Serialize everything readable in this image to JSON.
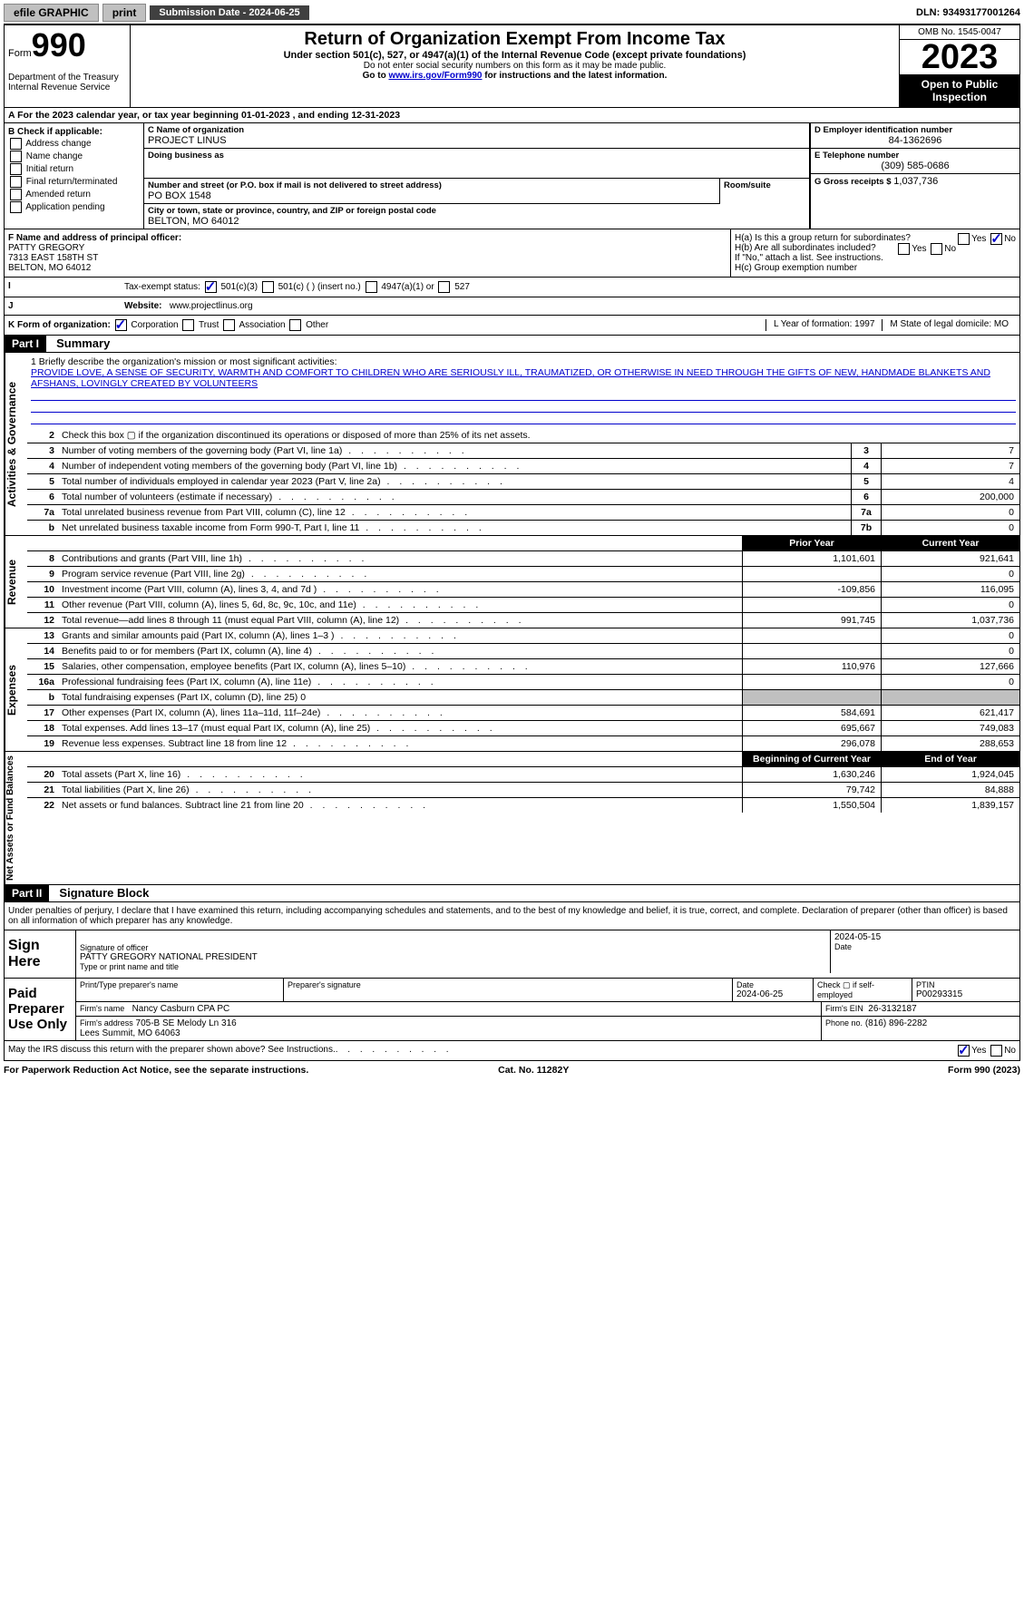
{
  "topbar": {
    "efile": "efile GRAPHIC",
    "print": "print",
    "submission": "Submission Date - 2024-06-25",
    "dln": "DLN: 93493177001264"
  },
  "header": {
    "form_label": "Form",
    "form_num": "990",
    "title": "Return of Organization Exempt From Income Tax",
    "subtitle": "Under section 501(c), 527, or 4947(a)(1) of the Internal Revenue Code (except private foundations)",
    "warn": "Do not enter social security numbers on this form as it may be made public.",
    "goto_pre": "Go to ",
    "goto_link": "www.irs.gov/Form990",
    "goto_post": " for instructions and the latest information.",
    "dept": "Department of the Treasury\nInternal Revenue Service",
    "omb": "OMB No. 1545-0047",
    "year": "2023",
    "inspection": "Open to Public Inspection"
  },
  "row_a": "A For the 2023 calendar year, or tax year beginning 01-01-2023    , and ending 12-31-2023",
  "box_b": {
    "title": "B Check if applicable:",
    "items": [
      "Address change",
      "Name change",
      "Initial return",
      "Final return/terminated",
      "Amended return",
      "Application pending"
    ]
  },
  "box_c": {
    "lbl": "C Name of organization",
    "val": "PROJECT LINUS",
    "dba_lbl": "Doing business as"
  },
  "box_addr": {
    "street_lbl": "Number and street (or P.O. box if mail is not delivered to street address)",
    "street": "PO BOX 1548",
    "room_lbl": "Room/suite",
    "city_lbl": "City or town, state or province, country, and ZIP or foreign postal code",
    "city": "BELTON, MO  64012"
  },
  "box_d": {
    "lbl": "D Employer identification number",
    "val": "84-1362696"
  },
  "box_e": {
    "lbl": "E Telephone number",
    "val": "(309) 585-0686"
  },
  "box_g": {
    "lbl": "G Gross receipts $",
    "val": "1,037,736"
  },
  "box_f": {
    "lbl": "F  Name and address of principal officer:",
    "name": "PATTY GREGORY",
    "addr1": "7313 EAST 158TH ST",
    "addr2": "BELTON, MO  64012"
  },
  "box_h": {
    "a": "H(a)  Is this a group return for subordinates?",
    "b": "H(b)  Are all subordinates included?",
    "b_note": "If \"No,\" attach a list. See instructions.",
    "c": "H(c)  Group exemption number",
    "yes": "Yes",
    "no": "No"
  },
  "row_i": {
    "lbl": "Tax-exempt status:",
    "opts": [
      "501(c)(3)",
      "501(c) (  ) (insert no.)",
      "4947(a)(1) or",
      "527"
    ]
  },
  "row_j": {
    "lbl": "Website:",
    "val": "www.projectlinus.org"
  },
  "row_k": {
    "lbl": "K Form of organization:",
    "opts": [
      "Corporation",
      "Trust",
      "Association",
      "Other"
    ],
    "l": "L Year of formation: 1997",
    "m": "M State of legal domicile: MO"
  },
  "part1": {
    "hdr": "Part I",
    "title": "Summary"
  },
  "mission": {
    "line1_lbl": "1  Briefly describe the organization's mission or most significant activities:",
    "text": "PROVIDE LOVE, A SENSE OF SECURITY, WARMTH AND COMFORT TO CHILDREN WHO ARE SERIOUSLY ILL, TRAUMATIZED, OR OTHERWISE IN NEED THROUGH THE GIFTS OF NEW, HANDMADE BLANKETS AND AFSHANS, LOVINGLY CREATED BY VOLUNTEERS"
  },
  "gov_lines": [
    {
      "n": "2",
      "d": "Check this box ▢ if the organization discontinued its operations or disposed of more than 25% of its net assets."
    },
    {
      "n": "3",
      "d": "Number of voting members of the governing body (Part VI, line 1a)",
      "box": "3",
      "v": "7"
    },
    {
      "n": "4",
      "d": "Number of independent voting members of the governing body (Part VI, line 1b)",
      "box": "4",
      "v": "7"
    },
    {
      "n": "5",
      "d": "Total number of individuals employed in calendar year 2023 (Part V, line 2a)",
      "box": "5",
      "v": "4"
    },
    {
      "n": "6",
      "d": "Total number of volunteers (estimate if necessary)",
      "box": "6",
      "v": "200,000"
    },
    {
      "n": "7a",
      "d": "Total unrelated business revenue from Part VIII, column (C), line 12",
      "box": "7a",
      "v": "0"
    },
    {
      "n": "b",
      "d": "Net unrelated business taxable income from Form 990-T, Part I, line 11",
      "box": "7b",
      "v": "0"
    }
  ],
  "year_hdr": {
    "prior": "Prior Year",
    "current": "Current Year"
  },
  "rev_lines": [
    {
      "n": "8",
      "d": "Contributions and grants (Part VIII, line 1h)",
      "p": "1,101,601",
      "c": "921,641"
    },
    {
      "n": "9",
      "d": "Program service revenue (Part VIII, line 2g)",
      "p": "",
      "c": "0"
    },
    {
      "n": "10",
      "d": "Investment income (Part VIII, column (A), lines 3, 4, and 7d )",
      "p": "-109,856",
      "c": "116,095"
    },
    {
      "n": "11",
      "d": "Other revenue (Part VIII, column (A), lines 5, 6d, 8c, 9c, 10c, and 11e)",
      "p": "",
      "c": "0"
    },
    {
      "n": "12",
      "d": "Total revenue—add lines 8 through 11 (must equal Part VIII, column (A), line 12)",
      "p": "991,745",
      "c": "1,037,736"
    }
  ],
  "exp_lines": [
    {
      "n": "13",
      "d": "Grants and similar amounts paid (Part IX, column (A), lines 1–3 )",
      "p": "",
      "c": "0"
    },
    {
      "n": "14",
      "d": "Benefits paid to or for members (Part IX, column (A), line 4)",
      "p": "",
      "c": "0"
    },
    {
      "n": "15",
      "d": "Salaries, other compensation, employee benefits (Part IX, column (A), lines 5–10)",
      "p": "110,976",
      "c": "127,666"
    },
    {
      "n": "16a",
      "d": "Professional fundraising fees (Part IX, column (A), line 11e)",
      "p": "",
      "c": "0"
    },
    {
      "n": "b",
      "d": "Total fundraising expenses (Part IX, column (D), line 25) 0",
      "shaded": true
    },
    {
      "n": "17",
      "d": "Other expenses (Part IX, column (A), lines 11a–11d, 11f–24e)",
      "p": "584,691",
      "c": "621,417"
    },
    {
      "n": "18",
      "d": "Total expenses. Add lines 13–17 (must equal Part IX, column (A), line 25)",
      "p": "695,667",
      "c": "749,083"
    },
    {
      "n": "19",
      "d": "Revenue less expenses. Subtract line 18 from line 12",
      "p": "296,078",
      "c": "288,653"
    }
  ],
  "na_hdr": {
    "begin": "Beginning of Current Year",
    "end": "End of Year"
  },
  "na_lines": [
    {
      "n": "20",
      "d": "Total assets (Part X, line 16)",
      "p": "1,630,246",
      "c": "1,924,045"
    },
    {
      "n": "21",
      "d": "Total liabilities (Part X, line 26)",
      "p": "79,742",
      "c": "84,888"
    },
    {
      "n": "22",
      "d": "Net assets or fund balances. Subtract line 21 from line 20",
      "p": "1,550,504",
      "c": "1,839,157"
    }
  ],
  "sidebars": {
    "gov": "Activities & Governance",
    "rev": "Revenue",
    "exp": "Expenses",
    "na": "Net Assets or Fund Balances"
  },
  "part2": {
    "hdr": "Part II",
    "title": "Signature Block"
  },
  "sig": {
    "declaration": "Under penalties of perjury, I declare that I have examined this return, including accompanying schedules and statements, and to the best of my knowledge and belief, it is true, correct, and complete. Declaration of preparer (other than officer) is based on all information of which preparer has any knowledge.",
    "here": "Sign Here",
    "officer_sig_lbl": "Signature of officer",
    "officer_name": "PATTY GREGORY NATIONAL PRESIDENT",
    "officer_title_lbl": "Type or print name and title",
    "date1": "2024-05-15",
    "date_lbl": "Date",
    "paid": "Paid Preparer Use Only",
    "prep_name_lbl": "Print/Type preparer's name",
    "prep_sig_lbl": "Preparer's signature",
    "date2": "2024-06-25",
    "self_lbl": "Check ▢ if self-employed",
    "ptin_lbl": "PTIN",
    "ptin": "P00293315",
    "firm_name_lbl": "Firm's name",
    "firm_name": "Nancy Casburn CPA PC",
    "firm_ein_lbl": "Firm's EIN",
    "firm_ein": "26-3132187",
    "firm_addr_lbl": "Firm's address",
    "firm_addr": "705-B SE Melody Ln 316\nLees Summit, MO  64063",
    "phone_lbl": "Phone no.",
    "phone": "(816) 896-2282",
    "discuss": "May the IRS discuss this return with the preparer shown above? See Instructions."
  },
  "footer": {
    "left": "For Paperwork Reduction Act Notice, see the separate instructions.",
    "mid": "Cat. No. 11282Y",
    "right": "Form 990 (2023)"
  }
}
